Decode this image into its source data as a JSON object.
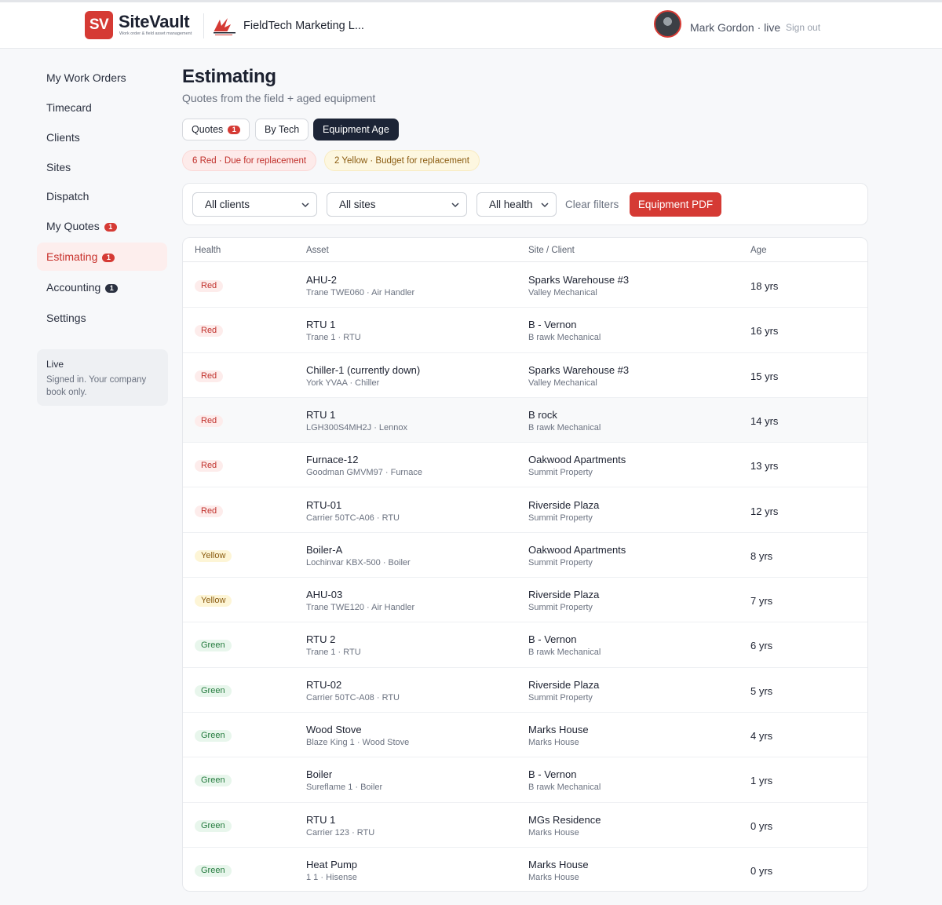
{
  "header": {
    "brand_initials": "SV",
    "brand_name": "SiteVault",
    "brand_tagline": "Work order & field asset management",
    "company_name": "FieldTech Marketing L...",
    "user_label": "Mark Gordon · live",
    "sign_out": "Sign out",
    "accent_color": "#d53a34"
  },
  "sidebar": {
    "items": [
      {
        "label": "My Work Orders",
        "badge": ""
      },
      {
        "label": "Timecard",
        "badge": ""
      },
      {
        "label": "Clients",
        "badge": ""
      },
      {
        "label": "Sites",
        "badge": ""
      },
      {
        "label": "Dispatch",
        "badge": ""
      },
      {
        "label": "My Quotes",
        "badge": "1"
      },
      {
        "label": "Estimating",
        "badge": "1"
      },
      {
        "label": "Accounting",
        "badge": "1"
      },
      {
        "label": "Settings",
        "badge": ""
      }
    ],
    "active_item": "Estimating",
    "status_title": "Live",
    "status_text": "Signed in. Your company book only."
  },
  "main": {
    "title": "Estimating",
    "subtitle": "Quotes from the field + aged equipment",
    "tabs": [
      {
        "label": "Quotes",
        "badge": "1"
      },
      {
        "label": "By Tech",
        "badge": ""
      },
      {
        "label": "Equipment Age",
        "badge": ""
      }
    ],
    "active_tab": "Equipment Age",
    "summary": {
      "red": "6 Red · Due for replacement",
      "yellow": "2 Yellow · Budget for replacement"
    },
    "filters": {
      "client": "All clients",
      "site": "All sites",
      "health": "All health",
      "clear_label": "Clear filters",
      "pdf_label": "Equipment PDF"
    },
    "table": {
      "columns": [
        "Health",
        "Asset",
        "Site / Client",
        "Age"
      ],
      "rows": [
        {
          "health": "Red",
          "asset": "AHU-2",
          "asset_detail": "Trane TWE060 · Air Handler",
          "site": "Sparks Warehouse #3",
          "client": "Valley Mechanical",
          "age": "18 yrs"
        },
        {
          "health": "Red",
          "asset": "RTU 1",
          "asset_detail": "Trane 1 · RTU",
          "site": "B - Vernon",
          "client": "B rawk Mechanical",
          "age": "16 yrs"
        },
        {
          "health": "Red",
          "asset": "Chiller-1 (currently down)",
          "asset_detail": "York YVAA · Chiller",
          "site": "Sparks Warehouse #3",
          "client": "Valley Mechanical",
          "age": "15 yrs"
        },
        {
          "health": "Red",
          "asset": "RTU 1",
          "asset_detail": "LGH300S4MH2J · Lennox",
          "site": "B rock",
          "client": "B rawk Mechanical",
          "age": "14 yrs"
        },
        {
          "health": "Red",
          "asset": "Furnace-12",
          "asset_detail": "Goodman GMVM97 · Furnace",
          "site": "Oakwood Apartments",
          "client": "Summit Property",
          "age": "13 yrs"
        },
        {
          "health": "Red",
          "asset": "RTU-01",
          "asset_detail": "Carrier 50TC-A06 · RTU",
          "site": "Riverside Plaza",
          "client": "Summit Property",
          "age": "12 yrs"
        },
        {
          "health": "Yellow",
          "asset": "Boiler-A",
          "asset_detail": "Lochinvar KBX-500 · Boiler",
          "site": "Oakwood Apartments",
          "client": "Summit Property",
          "age": "8 yrs"
        },
        {
          "health": "Yellow",
          "asset": "AHU-03",
          "asset_detail": "Trane TWE120 · Air Handler",
          "site": "Riverside Plaza",
          "client": "Summit Property",
          "age": "7 yrs"
        },
        {
          "health": "Green",
          "asset": "RTU 2",
          "asset_detail": "Trane 1 · RTU",
          "site": "B - Vernon",
          "client": "B rawk Mechanical",
          "age": "6 yrs"
        },
        {
          "health": "Green",
          "asset": "RTU-02",
          "asset_detail": "Carrier 50TC-A08 · RTU",
          "site": "Riverside Plaza",
          "client": "Summit Property",
          "age": "5 yrs"
        },
        {
          "health": "Green",
          "asset": "Wood Stove",
          "asset_detail": "Blaze King 1 · Wood Stove",
          "site": "Marks House",
          "client": "Marks House",
          "age": "4 yrs"
        },
        {
          "health": "Green",
          "asset": "Boiler",
          "asset_detail": "Sureflame 1 · Boiler",
          "site": "B - Vernon",
          "client": "B rawk Mechanical",
          "age": "1 yrs"
        },
        {
          "health": "Green",
          "asset": "RTU 1",
          "asset_detail": "Carrier 123 · RTU",
          "site": "MGs Residence",
          "client": "Marks House",
          "age": "0 yrs"
        },
        {
          "health": "Green",
          "asset": "Heat Pump",
          "asset_detail": "1 1 · Hisense",
          "site": "Marks House",
          "client": "Marks House",
          "age": "0 yrs"
        }
      ]
    }
  }
}
